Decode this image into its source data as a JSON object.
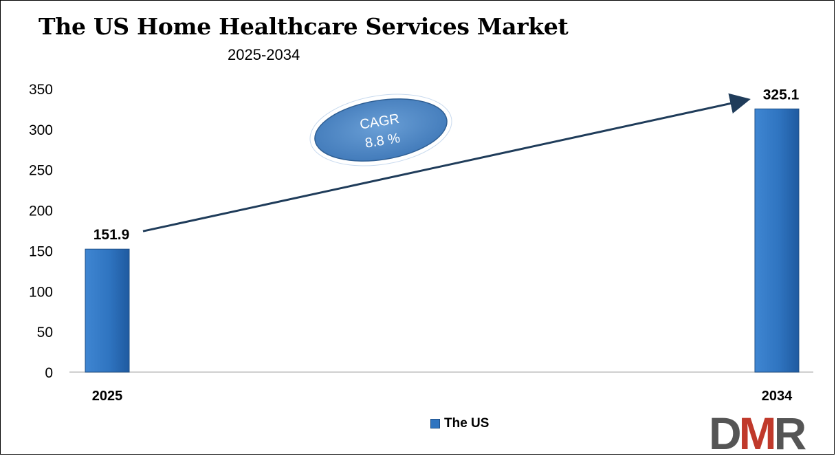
{
  "chart_data": {
    "type": "bar",
    "title": "The US Home Healthcare Services Market",
    "subtitle": "2025-2034",
    "categories": [
      "2025",
      "2034"
    ],
    "series": [
      {
        "name": "The US",
        "values": [
          151.9,
          325.1
        ]
      }
    ],
    "data_labels": [
      "151.9",
      "325.1"
    ],
    "ylim": [
      0,
      350
    ],
    "yticks": [
      0,
      50,
      100,
      150,
      200,
      250,
      300,
      350
    ],
    "ytick_labels": [
      "0",
      "50",
      "100",
      "150",
      "200",
      "250",
      "300",
      "350"
    ],
    "xlabel": "",
    "ylabel": "",
    "grid": false,
    "legend_position": "bottom-center",
    "annotation": {
      "line1": "CAGR",
      "line2": "8.8 %"
    },
    "colors": {
      "bar": "#2f74c0",
      "bar_dark": "#1f4f86",
      "arrow": "#1f3c5a",
      "ellipse": "#5b8ec6"
    }
  },
  "logo": {
    "text": "DMR",
    "colors": {
      "d": "#555555",
      "m": "#c0392b",
      "r": "#555555"
    }
  }
}
